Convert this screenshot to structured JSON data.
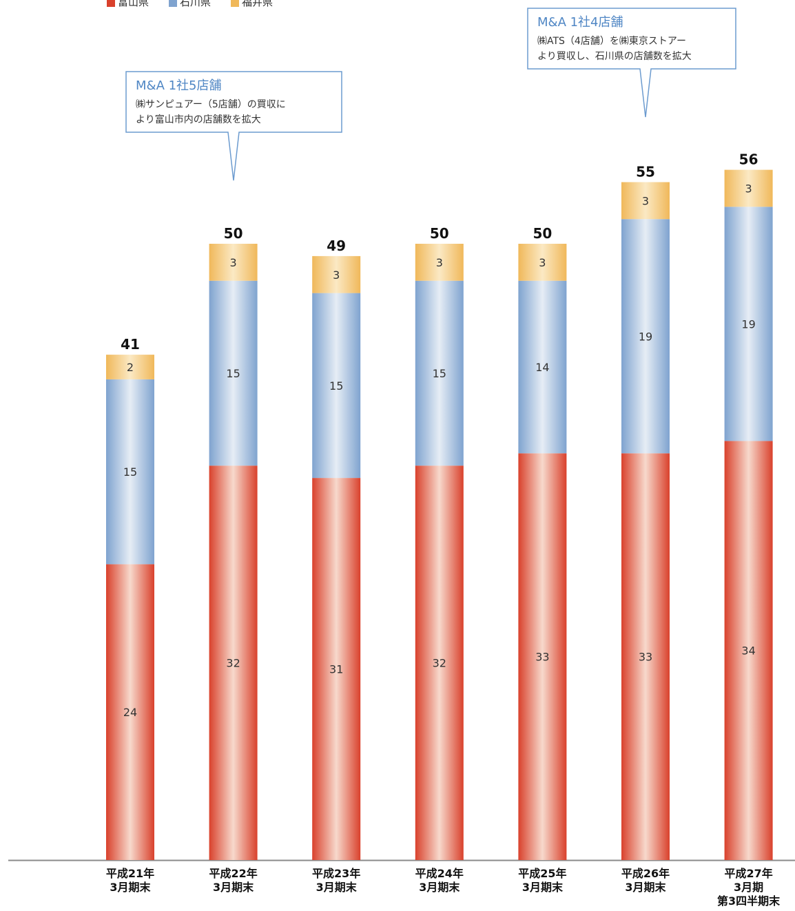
{
  "chart_data": {
    "type": "bar",
    "stacked": true,
    "categories": [
      [
        "平成21年",
        "3月期末"
      ],
      [
        "平成22年",
        "3月期末"
      ],
      [
        "平成23年",
        "3月期末"
      ],
      [
        "平成24年",
        "3月期末"
      ],
      [
        "平成25年",
        "3月期末"
      ],
      [
        "平成26年",
        "3月期末"
      ],
      [
        "平成27年",
        "3月期",
        "第3四半期末"
      ]
    ],
    "series": [
      {
        "name": "富山県",
        "values": [
          24,
          32,
          31,
          32,
          33,
          33,
          34
        ],
        "color": "#d9412c"
      },
      {
        "name": "石川県",
        "values": [
          15,
          15,
          15,
          15,
          14,
          19,
          19
        ],
        "color": "#7fa3cf"
      },
      {
        "name": "福井県",
        "values": [
          2,
          3,
          3,
          3,
          3,
          3,
          3
        ],
        "color": "#f0b85a"
      }
    ],
    "totals": [
      41,
      50,
      49,
      50,
      50,
      55,
      56
    ],
    "ylim": [
      0,
      60
    ],
    "grid": false,
    "legend_position": "top-left",
    "annotations": [
      {
        "target_index": 1,
        "title": "M&A 1社5店舗",
        "lines": [
          "㈱サンピュアー（5店舗）の買収に",
          "より富山市内の店舗数を拡大"
        ]
      },
      {
        "target_index": 5,
        "title": "M&A 1社4店舗",
        "lines": [
          "㈱ATS（4店舗）を㈱東京ストアー",
          "より買収し、石川県の店舗数を拡大"
        ]
      }
    ]
  }
}
